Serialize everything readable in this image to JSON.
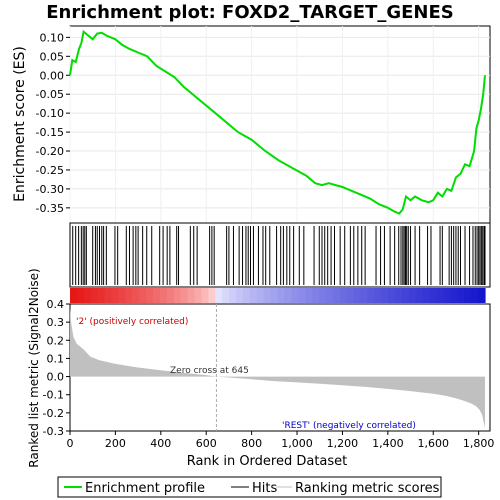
{
  "chart_data": {
    "type": "line",
    "title": "Enrichment plot: FOXD2_TARGET_GENES",
    "ylabel": "Enrichment score (ES)",
    "ylabel2": "Ranked list metric (Signal2Noise)",
    "xlabel": "Rank in Ordered Dataset",
    "xlim": [
      0,
      1850
    ],
    "ylim_es": [
      -0.39,
      0.13
    ],
    "ylim_metric": [
      -0.3,
      0.4
    ],
    "x_ticks": [
      0,
      200,
      400,
      600,
      800,
      1000,
      1200,
      1400,
      1600,
      1800
    ],
    "x_tick_labels": [
      "0",
      "200",
      "400",
      "600",
      "800",
      "1,000",
      "1,200",
      "1,400",
      "1,600",
      "1,800"
    ],
    "es_ticks": [
      0.1,
      0.05,
      0.0,
      -0.05,
      -0.1,
      -0.15,
      -0.2,
      -0.25,
      -0.3,
      -0.35
    ],
    "es_tick_labels": [
      "0.10",
      "0.05",
      "0.00",
      "-0.05",
      "-0.10",
      "-0.15",
      "-0.20",
      "-0.25",
      "-0.30",
      "-0.35"
    ],
    "metric_ticks": [
      0.4,
      0.3,
      0.2,
      0.1,
      0.0,
      -0.1,
      -0.2,
      -0.3
    ],
    "metric_tick_labels": [
      "0.4",
      "0.3",
      "0.2",
      "0.1",
      "0.0",
      "-0.1",
      "-0.2",
      "-0.3"
    ],
    "enrichment_profile": {
      "name": "Enrichment profile",
      "color": "#00dd00",
      "x": [
        0,
        10,
        25,
        40,
        50,
        60,
        80,
        100,
        120,
        140,
        160,
        180,
        200,
        230,
        260,
        300,
        340,
        380,
        420,
        460,
        500,
        560,
        620,
        680,
        740,
        800,
        860,
        920,
        980,
        1040,
        1080,
        1110,
        1140,
        1170,
        1200,
        1240,
        1280,
        1320,
        1360,
        1400,
        1430,
        1450,
        1465,
        1480,
        1500,
        1520,
        1550,
        1580,
        1600,
        1620,
        1640,
        1660,
        1680,
        1700,
        1720,
        1740,
        1760,
        1780,
        1790,
        1800,
        1810,
        1820,
        1828
      ],
      "y": [
        0.0,
        0.04,
        0.035,
        0.07,
        0.085,
        0.115,
        0.105,
        0.095,
        0.11,
        0.112,
        0.105,
        0.1,
        0.095,
        0.08,
        0.07,
        0.06,
        0.05,
        0.025,
        0.01,
        -0.005,
        -0.03,
        -0.06,
        -0.09,
        -0.12,
        -0.15,
        -0.17,
        -0.2,
        -0.225,
        -0.245,
        -0.265,
        -0.285,
        -0.29,
        -0.285,
        -0.29,
        -0.295,
        -0.305,
        -0.315,
        -0.325,
        -0.34,
        -0.35,
        -0.36,
        -0.365,
        -0.355,
        -0.32,
        -0.33,
        -0.32,
        -0.33,
        -0.335,
        -0.33,
        -0.31,
        -0.32,
        -0.3,
        -0.305,
        -0.27,
        -0.26,
        -0.235,
        -0.24,
        -0.2,
        -0.14,
        -0.12,
        -0.09,
        -0.05,
        0.0
      ]
    },
    "hits": {
      "name": "Hits",
      "color": "#000000",
      "positions": [
        12,
        25,
        38,
        50,
        58,
        65,
        72,
        100,
        112,
        120,
        130,
        140,
        148,
        160,
        198,
        210,
        248,
        262,
        278,
        290,
        300,
        320,
        338,
        360,
        395,
        410,
        428,
        440,
        470,
        478,
        530,
        545,
        560,
        615,
        625,
        635,
        690,
        700,
        720,
        745,
        760,
        775,
        785,
        795,
        808,
        830,
        850,
        862,
        880,
        910,
        928,
        940,
        955,
        968,
        985,
        1010,
        1030,
        1075,
        1098,
        1110,
        1122,
        1135,
        1150,
        1165,
        1190,
        1210,
        1235,
        1250,
        1268,
        1285,
        1300,
        1348,
        1368,
        1385,
        1410,
        1430,
        1448,
        1458,
        1466,
        1472,
        1478,
        1483,
        1490,
        1500,
        1520,
        1540,
        1575,
        1590,
        1630,
        1640,
        1670,
        1680,
        1690,
        1700,
        1710,
        1720,
        1740,
        1760,
        1775,
        1785,
        1793,
        1800,
        1806,
        1812,
        1818,
        1824,
        1828
      ]
    },
    "ranking_metric": {
      "name": "Ranking metric scores",
      "color": "#c0c0c0",
      "x": [
        0,
        5,
        15,
        30,
        60,
        90,
        130,
        200,
        300,
        400,
        500,
        600,
        645,
        700,
        800,
        900,
        1000,
        1100,
        1200,
        1300,
        1400,
        1500,
        1600,
        1650,
        1700,
        1740,
        1770,
        1790,
        1805,
        1815,
        1822,
        1828
      ],
      "y": [
        0.38,
        0.3,
        0.22,
        0.18,
        0.15,
        0.11,
        0.09,
        0.07,
        0.05,
        0.035,
        0.02,
        0.008,
        0.0,
        -0.005,
        -0.015,
        -0.025,
        -0.032,
        -0.04,
        -0.048,
        -0.057,
        -0.068,
        -0.08,
        -0.095,
        -0.105,
        -0.12,
        -0.135,
        -0.15,
        -0.165,
        -0.185,
        -0.21,
        -0.25,
        -0.28
      ]
    },
    "annotations": {
      "positive_label": "'2' (positively correlated)",
      "negative_label": "'REST' (negatively correlated)",
      "zero_cross": "Zero cross at 645",
      "zero_cross_x": 645,
      "positive_color": "#cc0000",
      "negative_color": "#0000cc"
    },
    "legend": {
      "placement": "bottom",
      "items": [
        "Enrichment profile",
        "Hits",
        "Ranking metric scores"
      ]
    }
  }
}
